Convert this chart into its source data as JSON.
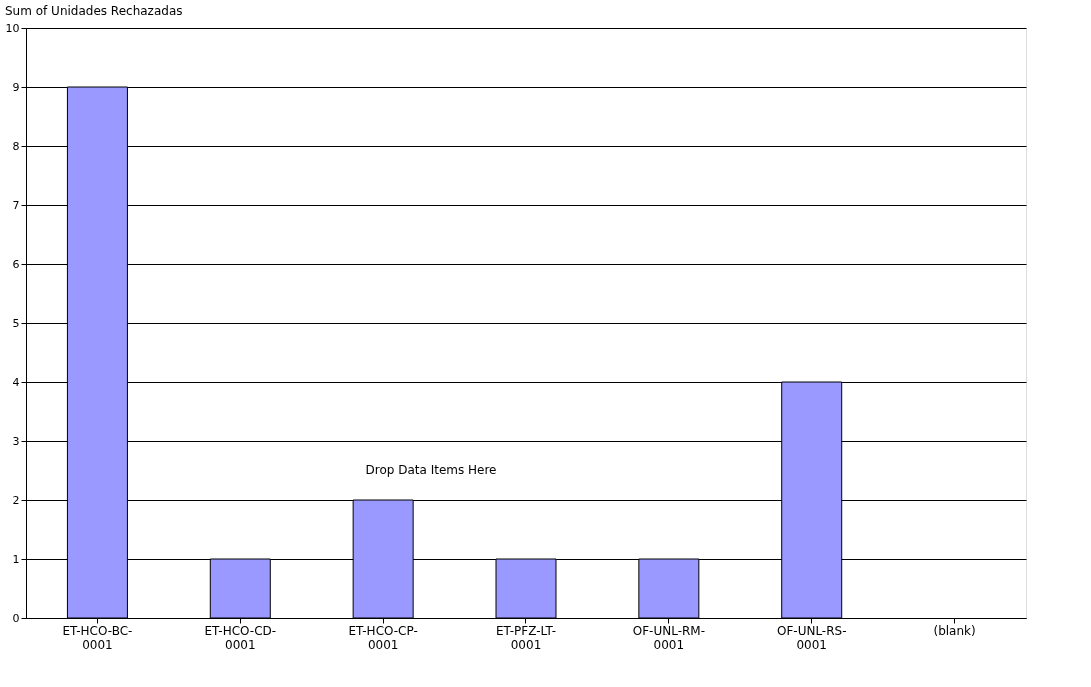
{
  "chart_data": {
    "type": "bar",
    "title": "Sum of Unidades Rechazadas",
    "categories": [
      "ET-HCO-BC-0001",
      "ET-HCO-CD-0001",
      "ET-HCO-CP-0001",
      "ET-PFZ-LT-0001",
      "OF-UNL-RM-0001",
      "OF-UNL-RS-0001",
      "(blank)"
    ],
    "values": [
      9,
      1,
      2,
      1,
      1,
      4,
      null
    ],
    "color": "#9999ff",
    "ylim": [
      0,
      10
    ],
    "yticks": [
      0,
      1,
      2,
      3,
      4,
      5,
      6,
      7,
      8,
      9,
      10
    ],
    "grid": "y",
    "annotations": [
      "Drop Data Items Here"
    ]
  }
}
